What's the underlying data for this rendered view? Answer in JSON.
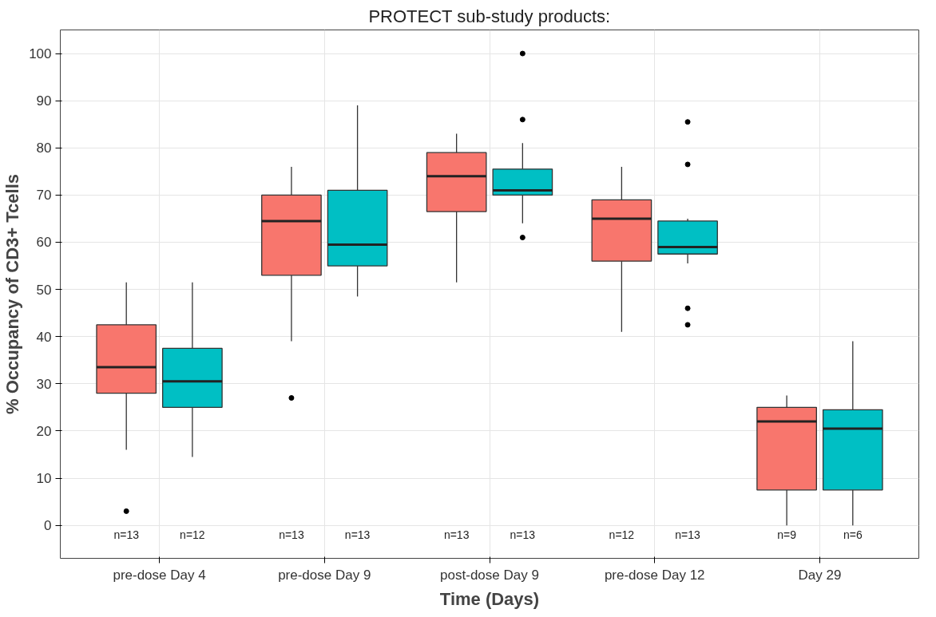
{
  "chart_data": {
    "type": "box",
    "xlabel": "Time (Days)",
    "ylabel": "% Occupancy of CD3+ Tcells",
    "legend_title": "PROTECT sub-study products:",
    "grid": true,
    "categories": [
      "pre-dose Day 4",
      "pre-dose Day 9",
      "post-dose Day 9",
      "pre-dose Day 12",
      "Day 29"
    ],
    "ylim": [
      -7,
      105
    ],
    "yticks": [
      0,
      10,
      20,
      30,
      40,
      50,
      60,
      70,
      80,
      90,
      100
    ],
    "series": [
      {
        "color": "#f8766d",
        "value_labels": [
          "n=13",
          "n=13",
          "n=13",
          "n=12",
          "n=9"
        ],
        "boxes": [
          {
            "low": 16,
            "q1": 28,
            "median": 33.5,
            "q3": 42.5,
            "high": 51.5,
            "outliers": [
              3
            ]
          },
          {
            "low": 39,
            "q1": 53,
            "median": 64.5,
            "q3": 70,
            "high": 76,
            "outliers": [
              27
            ]
          },
          {
            "low": 51.5,
            "q1": 66.5,
            "median": 74,
            "q3": 79,
            "high": 83
          },
          {
            "low": 41,
            "q1": 56,
            "median": 65,
            "q3": 69,
            "high": 76
          },
          {
            "low": 0,
            "q1": 7.5,
            "median": 22,
            "q3": 25,
            "high": 27.5
          }
        ]
      },
      {
        "color": "#00bfc4",
        "value_labels": [
          "n=12",
          "n=13",
          "n=13",
          "n=13",
          "n=6"
        ],
        "boxes": [
          {
            "low": 14.5,
            "q1": 25,
            "median": 30.5,
            "q3": 37.5,
            "high": 51.5
          },
          {
            "low": 48.5,
            "q1": 55,
            "median": 59.5,
            "q3": 71,
            "high": 89
          },
          {
            "low": 64,
            "q1": 70,
            "median": 71,
            "q3": 75.5,
            "high": 81,
            "outliers": [
              100,
              86,
              61
            ]
          },
          {
            "low": 55.5,
            "q1": 57.5,
            "median": 59,
            "q3": 64.5,
            "high": 65,
            "outliers": [
              85.5,
              76.5,
              46,
              42.5
            ]
          },
          {
            "low": 0,
            "q1": 7.5,
            "median": 20.5,
            "q3": 24.5,
            "high": 39
          }
        ]
      }
    ]
  }
}
